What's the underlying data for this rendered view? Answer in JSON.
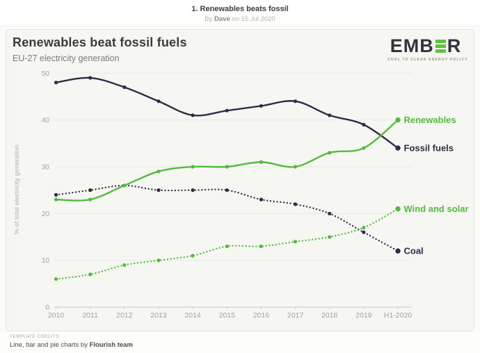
{
  "header": {
    "title": "1. Renewables beats fossil",
    "byline_by": "By",
    "author": "Dave",
    "byline_date": "on 15 Jul 2020"
  },
  "card": {
    "title": "Renewables beat fossil fuels",
    "subtitle": "EU-27 electricity generation"
  },
  "logo": {
    "name": "EMBER",
    "letters_pre": "EMB",
    "letters_post": "R",
    "tagline": "COAL TO CLEAN ENERGY POLICY",
    "bar_color": "#5fc23d",
    "letter_color": "#33333b"
  },
  "footer": {
    "credits_label": "TEMPLATE CREDITS",
    "credits_text": "Line, bar and pie charts by",
    "credits_team": "Flourish team"
  },
  "chart_data": {
    "type": "line",
    "title": "Renewables beat fossil fuels",
    "subtitle": "EU-27 electricity generation",
    "xlabel": "",
    "ylabel": "% of total electricity generation",
    "categories": [
      "2010",
      "2011",
      "2012",
      "2013",
      "2014",
      "2015",
      "2016",
      "2017",
      "2018",
      "2019",
      "H1-2020"
    ],
    "yticks": [
      0,
      10,
      20,
      30,
      40,
      50
    ],
    "ylim": [
      0,
      52
    ],
    "grid": true,
    "legend_position": "direct-labels-right",
    "series": [
      {
        "name": "Coal",
        "style": "dotted",
        "color": "#2e2c47",
        "values": [
          24,
          25,
          26,
          25,
          25,
          25,
          23,
          22,
          20,
          16,
          12
        ]
      },
      {
        "name": "Wind and solar",
        "style": "dotted",
        "color": "#55b941",
        "values": [
          6,
          7,
          9,
          10,
          11,
          13,
          13,
          14,
          15,
          17,
          21
        ]
      },
      {
        "name": "Fossil fuels",
        "style": "solid",
        "color": "#2e2c47",
        "values": [
          48,
          49,
          47,
          44,
          41,
          42,
          43,
          44,
          41,
          39,
          34
        ]
      },
      {
        "name": "Renewables",
        "style": "solid",
        "color": "#55b941",
        "values": [
          23,
          23,
          26,
          29,
          30,
          30,
          31,
          30,
          33,
          34,
          40
        ]
      }
    ],
    "colors": {
      "green": "#55b941",
      "dark": "#2e2c47",
      "grid": "#e8e8e4",
      "axis": "#c6c6c2",
      "tick_text": "#a2a29e"
    }
  }
}
